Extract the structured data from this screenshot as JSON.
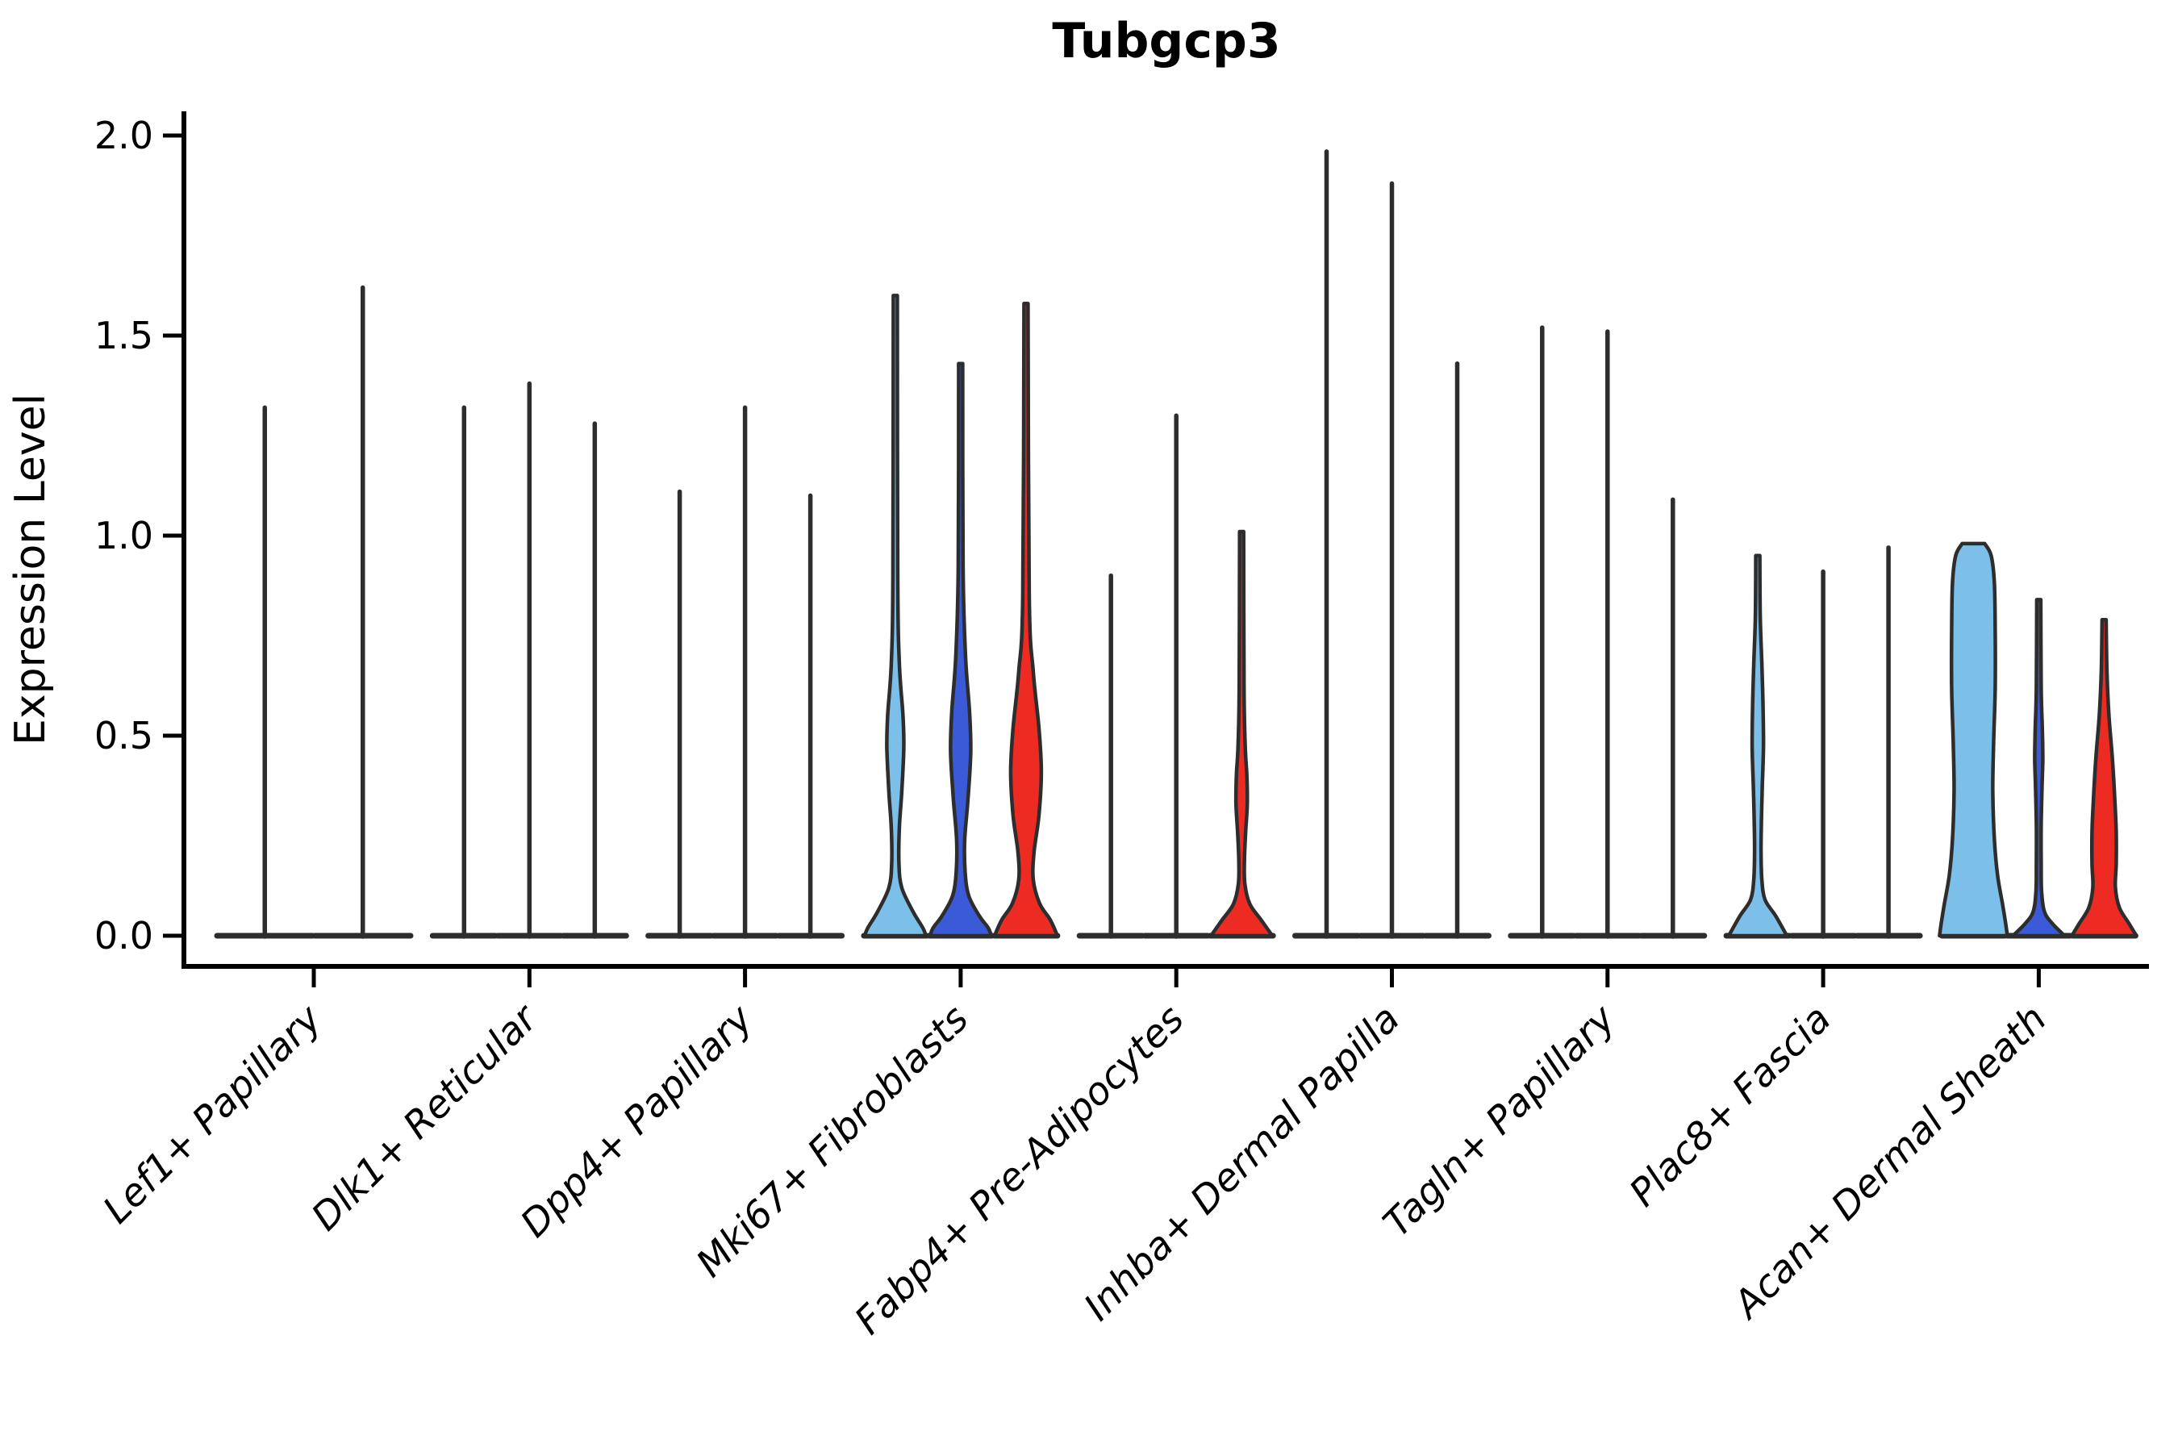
{
  "chart_data": {
    "type": "violin",
    "title": "Tubgcp3",
    "ylabel": "Expression Level",
    "xlabel": "",
    "ylim": [
      -0.08,
      2.05
    ],
    "yticks": [
      0.0,
      0.5,
      1.0,
      1.5,
      2.0
    ],
    "ytick_labels": [
      "0.0",
      "0.5",
      "1.0",
      "1.5",
      "2.0"
    ],
    "grid": "off",
    "legend_position": "none",
    "colors": {
      "light_blue": "#7CC0E9",
      "dark_blue": "#3B5AD7",
      "red": "#EE2B23",
      "outline": "#2D2D2D",
      "axis": "#000000"
    },
    "categories": [
      {
        "label": "Lef1+ Papillary",
        "violins": [
          {
            "color": "light_blue",
            "max": 1.32,
            "shape": "spike"
          },
          {
            "color": "dark_blue",
            "max": 1.62,
            "shape": "spike"
          }
        ]
      },
      {
        "label": "Dlk1+ Reticular",
        "violins": [
          {
            "color": "light_blue",
            "max": 1.32,
            "shape": "spike"
          },
          {
            "color": "dark_blue",
            "max": 1.38,
            "shape": "spike"
          },
          {
            "color": "red",
            "max": 1.28,
            "shape": "spike"
          }
        ]
      },
      {
        "label": "Dpp4+ Papillary",
        "violins": [
          {
            "color": "light_blue",
            "max": 1.11,
            "shape": "spike"
          },
          {
            "color": "dark_blue",
            "max": 1.32,
            "shape": "spike"
          },
          {
            "color": "red",
            "max": 1.1,
            "shape": "spike"
          }
        ]
      },
      {
        "label": "Mki67+ Fibroblasts",
        "violins": [
          {
            "color": "light_blue",
            "max": 1.6,
            "shape": "violin",
            "profile": [
              [
                1.6,
                2.5
              ],
              [
                0.9,
                3
              ],
              [
                0.68,
                5
              ],
              [
                0.55,
                9.5
              ],
              [
                0.47,
                10.5
              ],
              [
                0.36,
                8
              ],
              [
                0.27,
                5
              ],
              [
                0.18,
                4.5
              ],
              [
                0.12,
                8
              ],
              [
                0.06,
                22
              ],
              [
                0.02,
                34
              ],
              [
                0,
                38
              ]
            ]
          },
          {
            "color": "dark_blue",
            "max": 1.43,
            "shape": "violin",
            "profile": [
              [
                1.43,
                2.5
              ],
              [
                0.92,
                3
              ],
              [
                0.7,
                6
              ],
              [
                0.56,
                11
              ],
              [
                0.46,
                12.5
              ],
              [
                0.34,
                9
              ],
              [
                0.24,
                5
              ],
              [
                0.16,
                5.5
              ],
              [
                0.1,
                10
              ],
              [
                0.05,
                23
              ],
              [
                0.02,
                34
              ],
              [
                0,
                38
              ]
            ]
          },
          {
            "color": "red",
            "max": 1.58,
            "shape": "violin",
            "profile": [
              [
                1.58,
                2.5
              ],
              [
                0.85,
                4
              ],
              [
                0.66,
                9
              ],
              [
                0.52,
                16
              ],
              [
                0.41,
                19
              ],
              [
                0.3,
                16
              ],
              [
                0.21,
                10
              ],
              [
                0.14,
                9
              ],
              [
                0.08,
                17
              ],
              [
                0.04,
                30
              ],
              [
                0,
                39
              ]
            ]
          }
        ]
      },
      {
        "label": "Fabp4+ Pre-Adipocytes",
        "violins": [
          {
            "color": "light_blue",
            "max": 0.9,
            "shape": "spike"
          },
          {
            "color": "dark_blue",
            "max": 1.3,
            "shape": "spike"
          },
          {
            "color": "red",
            "max": 1.01,
            "shape": "violin",
            "profile": [
              [
                1.01,
                2.5
              ],
              [
                0.62,
                3
              ],
              [
                0.47,
                4.5
              ],
              [
                0.4,
                6.5
              ],
              [
                0.33,
                7
              ],
              [
                0.26,
                5
              ],
              [
                0.19,
                3.5
              ],
              [
                0.13,
                4
              ],
              [
                0.08,
                10
              ],
              [
                0.04,
                24
              ],
              [
                0,
                38
              ]
            ]
          }
        ]
      },
      {
        "label": "Inhba+ Dermal Papilla",
        "violins": [
          {
            "color": "light_blue",
            "max": 1.96,
            "shape": "spike"
          },
          {
            "color": "dark_blue",
            "max": 1.88,
            "shape": "spike"
          },
          {
            "color": "red",
            "max": 1.43,
            "shape": "spike"
          }
        ]
      },
      {
        "label": "Tagln+ Papillary",
        "violins": [
          {
            "color": "light_blue",
            "max": 1.52,
            "shape": "spike"
          },
          {
            "color": "dark_blue",
            "max": 1.51,
            "shape": "spike"
          },
          {
            "color": "red",
            "max": 1.09,
            "shape": "spike"
          }
        ]
      },
      {
        "label": "Plac8+ Fascia",
        "violins": [
          {
            "color": "light_blue",
            "max": 0.95,
            "shape": "violin",
            "profile": [
              [
                0.95,
                2.5
              ],
              [
                0.8,
                3
              ],
              [
                0.68,
                5
              ],
              [
                0.57,
                6.5
              ],
              [
                0.47,
                7
              ],
              [
                0.37,
                5.5
              ],
              [
                0.29,
                4.5
              ],
              [
                0.21,
                4
              ],
              [
                0.14,
                5
              ],
              [
                0.09,
                9
              ],
              [
                0.05,
                22
              ],
              [
                0,
                36
              ]
            ]
          },
          {
            "color": "dark_blue",
            "max": 0.91,
            "shape": "spike"
          },
          {
            "color": "red",
            "max": 0.97,
            "shape": "spike"
          }
        ]
      },
      {
        "label": "Acan+ Dermal Sheath",
        "violins": [
          {
            "color": "light_blue",
            "max": 0.98,
            "shape": "violin",
            "profile": [
              [
                0.98,
                14
              ],
              [
                0.95,
                22
              ],
              [
                0.88,
                26
              ],
              [
                0.76,
                27
              ],
              [
                0.62,
                27
              ],
              [
                0.48,
                25
              ],
              [
                0.36,
                24
              ],
              [
                0.24,
                26
              ],
              [
                0.15,
                30
              ],
              [
                0.08,
                36
              ],
              [
                0.03,
                40
              ],
              [
                0,
                42
              ]
            ]
          },
          {
            "color": "dark_blue",
            "max": 0.84,
            "shape": "violin",
            "profile": [
              [
                0.84,
                2.5
              ],
              [
                0.62,
                3
              ],
              [
                0.51,
                4.5
              ],
              [
                0.44,
                5
              ],
              [
                0.37,
                4
              ],
              [
                0.28,
                3
              ],
              [
                0.18,
                3
              ],
              [
                0.11,
                3.5
              ],
              [
                0.06,
                7
              ],
              [
                0.03,
                17
              ],
              [
                0,
                32
              ]
            ]
          },
          {
            "color": "red",
            "max": 0.79,
            "shape": "violin",
            "profile": [
              [
                0.79,
                2.5
              ],
              [
                0.66,
                3.5
              ],
              [
                0.55,
                6
              ],
              [
                0.45,
                10
              ],
              [
                0.35,
                13
              ],
              [
                0.26,
                15
              ],
              [
                0.18,
                15
              ],
              [
                0.12,
                14
              ],
              [
                0.07,
                19
              ],
              [
                0.03,
                31
              ],
              [
                0,
                40
              ]
            ]
          }
        ]
      }
    ]
  }
}
